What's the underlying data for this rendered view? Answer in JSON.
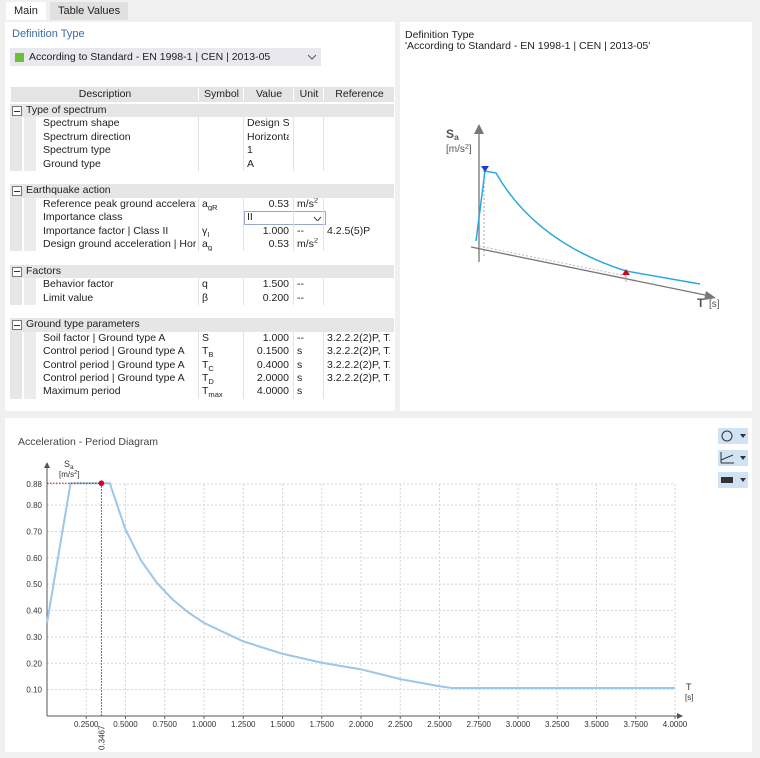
{
  "tabs": [
    "Main",
    "Table Values"
  ],
  "definition": {
    "label": "Definition Type",
    "value": "According to Standard - EN 1998-1 | CEN | 2013-05"
  },
  "table": {
    "columns": [
      "Description",
      "Symbol",
      "Value",
      "Unit",
      "Reference"
    ],
    "groups": [
      {
        "title": "Type of spectrum",
        "rows": [
          [
            "Spectrum shape",
            null,
            "Design Spectrum",
            null,
            null
          ],
          [
            "Spectrum direction",
            null,
            "Horizontal",
            null,
            null
          ],
          [
            "Spectrum type",
            null,
            "1",
            null,
            null
          ],
          [
            "Ground type",
            null,
            "A",
            null,
            null
          ]
        ]
      },
      {
        "title": "Earthquake action",
        "rows": [
          [
            "Reference peak ground acceleration",
            {
              "text": "a",
              "sub": "gR"
            },
            "0.53",
            {
              "text": "m/s",
              "sup": "2"
            },
            null
          ],
          [
            "Importance class",
            null,
            "II",
            null,
            null
          ],
          [
            "Importance factor | Class II",
            {
              "text": "γ",
              "sub": "I"
            },
            "1.000",
            "--",
            "4.2.5(5)P"
          ],
          [
            "Design ground acceleration | Hori...",
            {
              "text": "a",
              "sub": "g"
            },
            "0.53",
            {
              "text": "m/s",
              "sup": "2"
            },
            null
          ]
        ]
      },
      {
        "title": "Factors",
        "rows": [
          [
            "Behavior factor",
            "q",
            "1.500",
            "--",
            null
          ],
          [
            "Limit value",
            "β",
            "0.200",
            "--",
            null
          ]
        ]
      },
      {
        "title": "Ground type parameters",
        "rows": [
          [
            "Soil factor | Ground type A",
            "S",
            "1.000",
            "--",
            "3.2.2.2(2)P, T..."
          ],
          [
            "Control period | Ground type A",
            {
              "text": "T",
              "sub": "B"
            },
            "0.1500",
            "s",
            "3.2.2.2(2)P, T..."
          ],
          [
            "Control period | Ground type A",
            {
              "text": "T",
              "sub": "C"
            },
            "0.4000",
            "s",
            "3.2.2.2(2)P, T..."
          ],
          [
            "Control period | Ground type A",
            {
              "text": "T",
              "sub": "D"
            },
            "2.0000",
            "s",
            "3.2.2.2(2)P, T..."
          ],
          [
            "Maximum period",
            {
              "text": "T",
              "sub": "max"
            },
            "4.0000",
            "s",
            null
          ]
        ]
      }
    ]
  },
  "preview": {
    "title": "Definition Type",
    "subtitle": "'According to Standard - EN 1998-1 | CEN | 2013-05'",
    "y_label": {
      "text": "S",
      "sub": "a"
    },
    "y_unit": {
      "text": "[m/s",
      "sup": "2",
      "after": "]"
    },
    "x_label": "T",
    "x_unit": "[s]"
  },
  "chart_data": {
    "type": "line",
    "title": "Acceleration - Period Diagram",
    "y_label": {
      "text": "S",
      "sub": "a"
    },
    "y_unit": {
      "text": "[m/s",
      "sup": "2",
      "after": "]"
    },
    "x_label": "T",
    "x_unit": "[s]",
    "color": "#9cc6ea",
    "grid": true,
    "x": [
      0,
      0.15,
      0.4,
      0.5,
      0.6,
      0.7,
      0.8,
      0.9,
      1.0,
      1.25,
      1.5,
      1.75,
      2.0,
      2.25,
      2.5,
      2.582,
      3.0,
      3.5,
      4.0
    ],
    "values": [
      0.353,
      0.883,
      0.883,
      0.707,
      0.589,
      0.505,
      0.442,
      0.393,
      0.353,
      0.283,
      0.236,
      0.202,
      0.177,
      0.14,
      0.113,
      0.106,
      0.106,
      0.106,
      0.106
    ],
    "xlim": [
      0,
      4.0
    ],
    "ylim": [
      0,
      0.88
    ],
    "xticks": [
      {
        "value": 0.25,
        "label": "0.2500"
      },
      {
        "value": 0.5,
        "label": "0.5000"
      },
      {
        "value": 0.75,
        "label": "0.7500"
      },
      {
        "value": 1.0,
        "label": "1.0000"
      },
      {
        "value": 1.25,
        "label": "1.2500"
      },
      {
        "value": 1.5,
        "label": "1.5000"
      },
      {
        "value": 1.75,
        "label": "1.7500"
      },
      {
        "value": 2.0,
        "label": "2.0000"
      },
      {
        "value": 2.25,
        "label": "2.2500"
      },
      {
        "value": 2.5,
        "label": "2.5000"
      },
      {
        "value": 2.75,
        "label": "2.7500"
      },
      {
        "value": 3.0,
        "label": "3.0000"
      },
      {
        "value": 3.25,
        "label": "3.2500"
      },
      {
        "value": 3.5,
        "label": "3.5000"
      },
      {
        "value": 3.75,
        "label": "3.7500"
      },
      {
        "value": 4.0,
        "label": "4.0000"
      }
    ],
    "yticks": [
      {
        "value": 0.1,
        "label": "0.10"
      },
      {
        "value": 0.2,
        "label": "0.20"
      },
      {
        "value": 0.3,
        "label": "0.30"
      },
      {
        "value": 0.4,
        "label": "0.40"
      },
      {
        "value": 0.5,
        "label": "0.50"
      },
      {
        "value": 0.6,
        "label": "0.60"
      },
      {
        "value": 0.7,
        "label": "0.70"
      },
      {
        "value": 0.8,
        "label": "0.80"
      },
      {
        "value": 0.88,
        "label": "0.88"
      }
    ],
    "marker": {
      "x": {
        "value": 0.3467,
        "label": "0.3467"
      },
      "y": 0.883,
      "color": "#d9001b"
    }
  }
}
